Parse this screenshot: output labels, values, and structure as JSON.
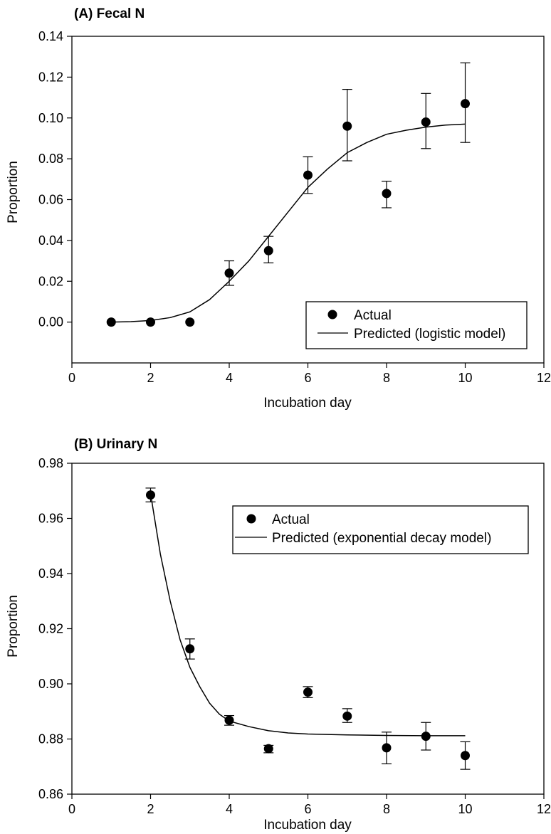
{
  "chart_data": [
    {
      "type": "scatter",
      "title": "(A) Fecal N",
      "xlabel": "Incubation day",
      "ylabel": "Proportion",
      "xlim": [
        0,
        12
      ],
      "ylim": [
        -0.02,
        0.14
      ],
      "xticks": [
        "0",
        "2",
        "4",
        "6",
        "8",
        "10",
        "12"
      ],
      "yticks": [
        "0.00",
        "0.02",
        "0.04",
        "0.06",
        "0.08",
        "0.10",
        "0.12",
        "0.14"
      ],
      "grid": false,
      "legend_position": "bottom-right",
      "series": [
        {
          "name": "Actual",
          "kind": "points",
          "x": [
            1,
            2,
            3,
            4,
            5,
            6,
            7,
            8,
            9,
            10
          ],
          "y": [
            0.0,
            0.0,
            0.0,
            0.024,
            0.035,
            0.072,
            0.096,
            0.063,
            0.098,
            0.107
          ],
          "err_low": [
            0.0,
            0.0,
            0.0,
            0.018,
            0.029,
            0.063,
            0.079,
            0.056,
            0.085,
            0.088
          ],
          "err_high": [
            0.0,
            0.0,
            0.0,
            0.03,
            0.042,
            0.081,
            0.114,
            0.069,
            0.112,
            0.127
          ]
        },
        {
          "name": "Predicted (logistic model)",
          "kind": "line",
          "x": [
            1,
            1.5,
            2,
            2.5,
            3,
            3.5,
            4,
            4.5,
            5,
            5.5,
            6,
            6.5,
            7,
            7.5,
            8,
            8.5,
            9,
            9.5,
            10
          ],
          "y": [
            0.0,
            0.0002,
            0.0008,
            0.0022,
            0.005,
            0.011,
            0.02,
            0.03,
            0.042,
            0.054,
            0.066,
            0.075,
            0.083,
            0.088,
            0.092,
            0.094,
            0.0955,
            0.0965,
            0.097
          ]
        }
      ]
    },
    {
      "type": "scatter",
      "title": "(B) Urinary N",
      "xlabel": "Incubation day",
      "ylabel": "Proportion",
      "xlim": [
        0,
        12
      ],
      "ylim": [
        0.86,
        0.98
      ],
      "xticks": [
        "0",
        "2",
        "4",
        "6",
        "8",
        "10",
        "12"
      ],
      "yticks": [
        "0.86",
        "0.88",
        "0.90",
        "0.92",
        "0.94",
        "0.96",
        "0.98"
      ],
      "grid": false,
      "legend_position": "top-right",
      "series": [
        {
          "name": "Actual",
          "kind": "points",
          "x": [
            2,
            3,
            4,
            5,
            6,
            7,
            8,
            9,
            10
          ],
          "y": [
            0.9685,
            0.9127,
            0.8868,
            0.8765,
            0.897,
            0.8883,
            0.8768,
            0.881,
            0.874
          ],
          "err_low": [
            0.966,
            0.909,
            0.885,
            0.875,
            0.895,
            0.886,
            0.871,
            0.876,
            0.869
          ],
          "err_high": [
            0.971,
            0.9163,
            0.8885,
            0.8777,
            0.899,
            0.891,
            0.8825,
            0.886,
            0.879
          ]
        },
        {
          "name": "Predicted (exponential decay model)",
          "kind": "line",
          "x": [
            2,
            2.25,
            2.5,
            2.75,
            3,
            3.25,
            3.5,
            3.75,
            4,
            4.5,
            5,
            5.5,
            6,
            7,
            8,
            9,
            10
          ],
          "y": [
            0.969,
            0.947,
            0.93,
            0.916,
            0.906,
            0.899,
            0.893,
            0.889,
            0.8865,
            0.8845,
            0.883,
            0.8822,
            0.8818,
            0.8815,
            0.8813,
            0.8812,
            0.8812
          ]
        }
      ]
    }
  ]
}
